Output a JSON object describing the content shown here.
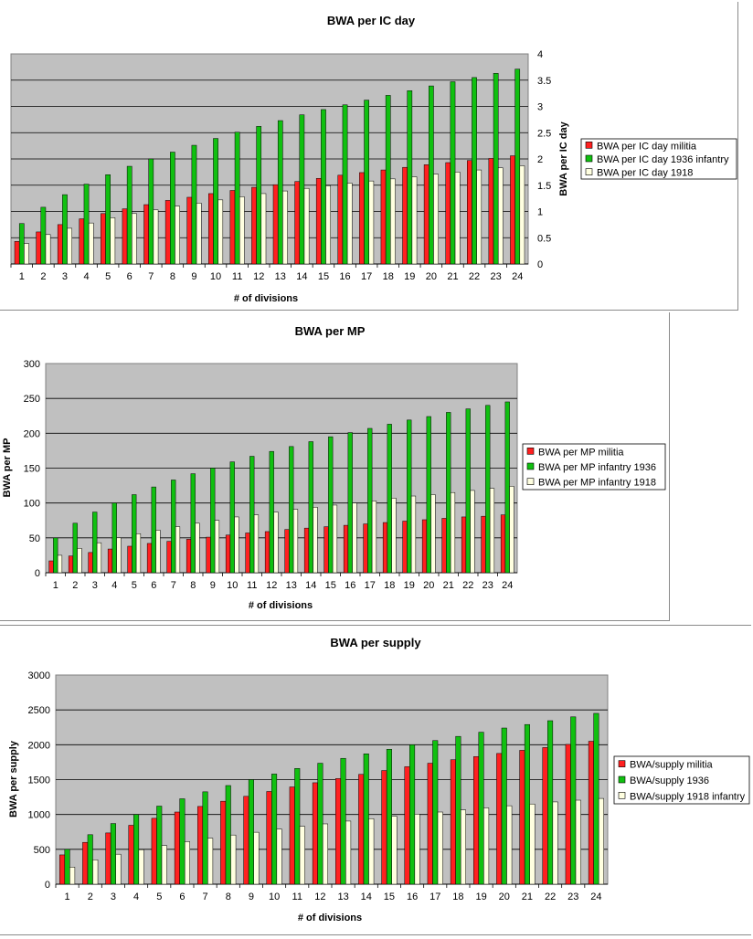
{
  "charts": [
    {
      "title": "BWA per IC day",
      "xlabel": "# of divisions",
      "ylabel": "BWA per IC day",
      "ylim": [
        0,
        4
      ],
      "yticks": [
        "0",
        "0.5",
        "1",
        "1.5",
        "2",
        "2.5",
        "3",
        "3.5",
        "4"
      ],
      "categories": [
        "1",
        "2",
        "3",
        "4",
        "5",
        "6",
        "7",
        "8",
        "9",
        "10",
        "11",
        "12",
        "13",
        "14",
        "15",
        "16",
        "17",
        "18",
        "19",
        "20",
        "21",
        "22",
        "23",
        "24"
      ],
      "series": [
        {
          "name": "BWA per IC day militia",
          "values": [
            0.43,
            0.61,
            0.75,
            0.86,
            0.96,
            1.05,
            1.13,
            1.21,
            1.27,
            1.34,
            1.4,
            1.46,
            1.51,
            1.57,
            1.63,
            1.69,
            1.74,
            1.79,
            1.84,
            1.89,
            1.93,
            1.97,
            2.01,
            2.06
          ]
        },
        {
          "name": "BWA per IC day 1936 infantry",
          "values": [
            0.77,
            1.08,
            1.32,
            1.52,
            1.7,
            1.86,
            2.0,
            2.13,
            2.26,
            2.39,
            2.51,
            2.62,
            2.73,
            2.84,
            2.94,
            3.03,
            3.12,
            3.21,
            3.3,
            3.39,
            3.47,
            3.55,
            3.63,
            3.71
          ]
        },
        {
          "name": "BWA per IC day 1918",
          "values": [
            0.39,
            0.56,
            0.68,
            0.78,
            0.88,
            0.96,
            1.03,
            1.1,
            1.16,
            1.22,
            1.28,
            1.34,
            1.39,
            1.44,
            1.49,
            1.54,
            1.58,
            1.62,
            1.66,
            1.71,
            1.75,
            1.79,
            1.83,
            1.87
          ]
        }
      ]
    },
    {
      "title": "BWA per MP",
      "xlabel": "# of divisions",
      "ylabel": "BWA per MP",
      "ylim": [
        0,
        300
      ],
      "yticks": [
        "0",
        "50",
        "100",
        "150",
        "200",
        "250",
        "300"
      ],
      "categories": [
        "1",
        "2",
        "3",
        "4",
        "5",
        "6",
        "7",
        "8",
        "9",
        "10",
        "11",
        "12",
        "13",
        "14",
        "15",
        "16",
        "17",
        "18",
        "19",
        "20",
        "21",
        "22",
        "23",
        "24"
      ],
      "series": [
        {
          "name": "BWA per MP militia",
          "values": [
            17,
            24,
            29,
            34,
            38,
            42,
            45,
            48,
            51,
            54,
            57,
            59,
            62,
            64,
            66,
            68,
            70,
            72,
            74,
            76,
            78,
            80,
            81,
            83
          ]
        },
        {
          "name": "BWA per MP infantry 1936",
          "values": [
            50,
            71,
            87,
            100,
            112,
            123,
            133,
            142,
            150,
            159,
            167,
            174,
            181,
            188,
            195,
            201,
            207,
            213,
            219,
            224,
            230,
            235,
            240,
            245
          ]
        },
        {
          "name": "BWA per MP infantry 1918",
          "values": [
            25,
            35,
            43,
            50,
            56,
            61,
            66,
            71,
            75,
            80,
            83,
            87,
            91,
            94,
            97,
            100,
            103,
            107,
            110,
            112,
            115,
            118,
            121,
            124
          ]
        }
      ]
    },
    {
      "title": "BWA per supply",
      "xlabel": "# of divisions",
      "ylabel": "BWA per supply",
      "ylim": [
        0,
        3000
      ],
      "yticks": [
        "0",
        "500",
        "1000",
        "1500",
        "2000",
        "2500",
        "3000"
      ],
      "categories": [
        "1",
        "2",
        "3",
        "4",
        "5",
        "6",
        "7",
        "8",
        "9",
        "10",
        "11",
        "12",
        "13",
        "14",
        "15",
        "16",
        "17",
        "18",
        "19",
        "20",
        "21",
        "22",
        "23",
        "24"
      ],
      "series": [
        {
          "name": "BWA/supply militia",
          "values": [
            420,
            600,
            735,
            845,
            945,
            1035,
            1115,
            1190,
            1260,
            1330,
            1395,
            1455,
            1515,
            1575,
            1630,
            1685,
            1735,
            1785,
            1830,
            1875,
            1920,
            1960,
            2005,
            2050
          ]
        },
        {
          "name": "BWA/supply 1936",
          "values": [
            500,
            710,
            870,
            1000,
            1120,
            1225,
            1325,
            1415,
            1500,
            1580,
            1660,
            1735,
            1805,
            1870,
            1935,
            2000,
            2060,
            2120,
            2180,
            2240,
            2290,
            2345,
            2400,
            2450
          ]
        },
        {
          "name": "BWA/supply 1918 infantry",
          "values": [
            245,
            350,
            430,
            495,
            555,
            610,
            660,
            705,
            745,
            790,
            830,
            865,
            905,
            940,
            975,
            1005,
            1035,
            1065,
            1095,
            1125,
            1150,
            1180,
            1205,
            1230
          ]
        }
      ]
    }
  ],
  "colors": {
    "plot_bg": "#c0c0c0",
    "militia": "#ff2020",
    "infantry_1936": "#10c010",
    "infantry_1918": "#ffffe0",
    "text": "#000000"
  }
}
